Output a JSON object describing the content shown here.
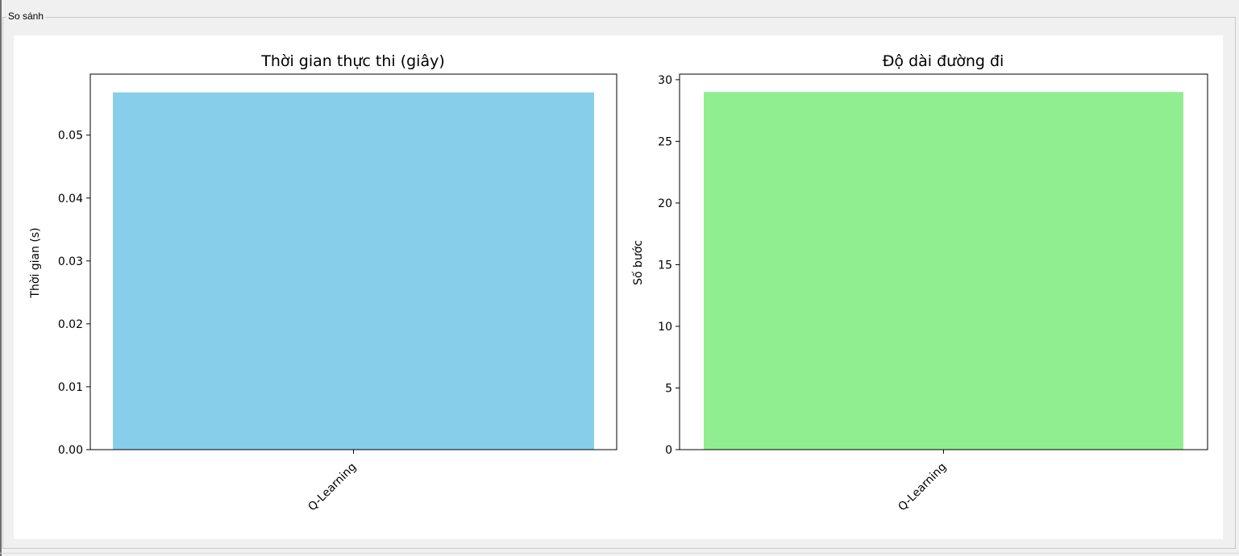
{
  "group": {
    "title": "So sánh"
  },
  "chart_data": [
    {
      "type": "bar",
      "title": "Thời gian thực thi (giây)",
      "xlabel": "",
      "ylabel": "Thời gian (s)",
      "categories": [
        "Q-Learning"
      ],
      "values": [
        0.0568
      ],
      "ylim": [
        0,
        0.0597
      ],
      "yticks": [
        0.0,
        0.01,
        0.02,
        0.03,
        0.04,
        0.05
      ],
      "ytick_labels": [
        "0.00",
        "0.01",
        "0.02",
        "0.03",
        "0.04",
        "0.05"
      ],
      "bar_color": "#87ceeb",
      "grid": false
    },
    {
      "type": "bar",
      "title": "Độ dài đường đi",
      "xlabel": "",
      "ylabel": "Số bước",
      "categories": [
        "Q-Learning"
      ],
      "values": [
        29
      ],
      "ylim": [
        0,
        30.45
      ],
      "yticks": [
        0,
        5,
        10,
        15,
        20,
        25,
        30
      ],
      "ytick_labels": [
        "0",
        "5",
        "10",
        "15",
        "20",
        "25",
        "30"
      ],
      "bar_color": "#90ee90",
      "grid": false
    }
  ]
}
